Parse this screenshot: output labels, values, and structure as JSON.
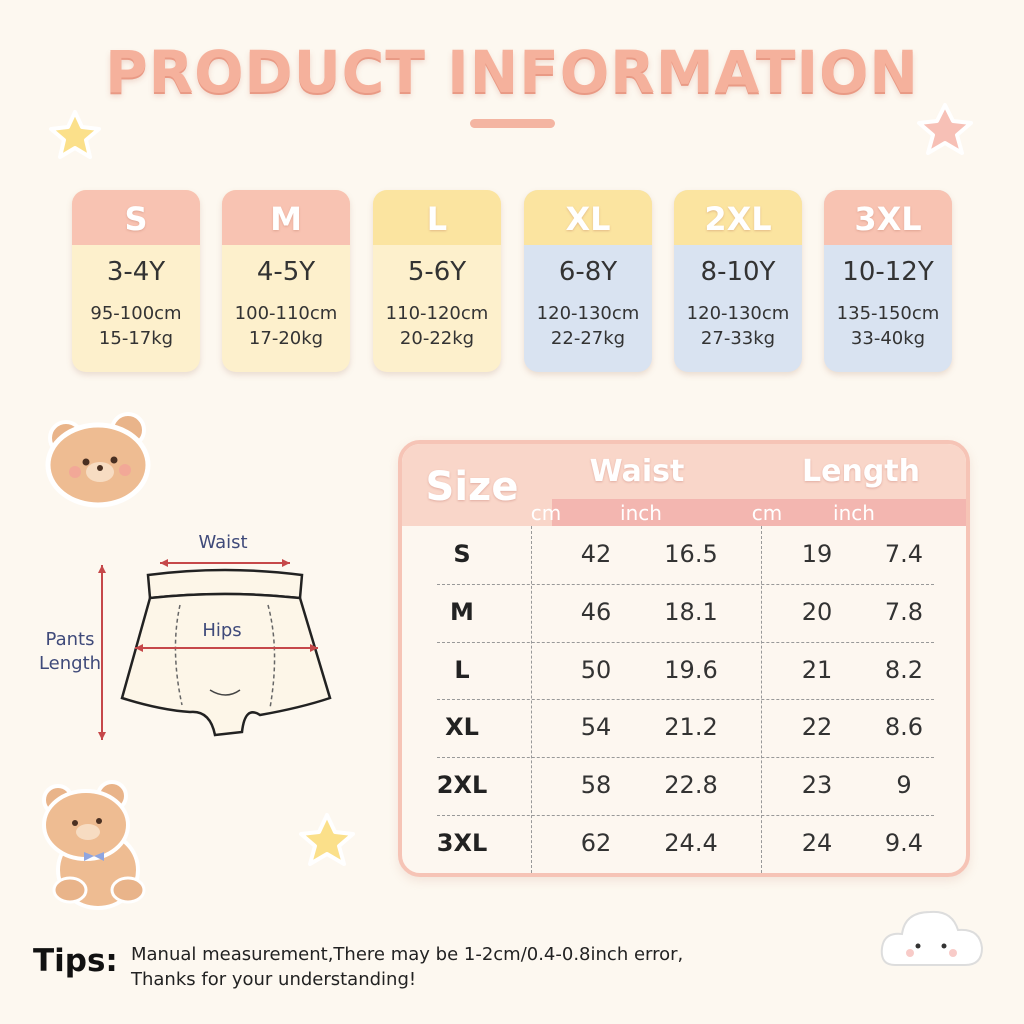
{
  "title": "PRODUCT INFORMATION",
  "size_cards": [
    {
      "size": "S",
      "age": "3-4Y",
      "height": "95-100cm",
      "weight": "15-17kg"
    },
    {
      "size": "M",
      "age": "4-5Y",
      "height": "100-110cm",
      "weight": "17-20kg"
    },
    {
      "size": "L",
      "age": "5-6Y",
      "height": "110-120cm",
      "weight": "20-22kg"
    },
    {
      "size": "XL",
      "age": "6-8Y",
      "height": "120-130cm",
      "weight": "22-27kg"
    },
    {
      "size": "2XL",
      "age": "8-10Y",
      "height": "120-130cm",
      "weight": "27-33kg"
    },
    {
      "size": "3XL",
      "age": "10-12Y",
      "height": "135-150cm",
      "weight": "33-40kg"
    }
  ],
  "diagram": {
    "waist": "Waist",
    "hips": "Hips",
    "length": "Pants Length"
  },
  "table": {
    "size_header": "Size",
    "groups": [
      {
        "name": "Waist",
        "units": [
          "cm",
          "inch"
        ]
      },
      {
        "name": "Length",
        "units": [
          "cm",
          "inch"
        ]
      }
    ],
    "rows": [
      [
        "S",
        42,
        16.5,
        19,
        7.4
      ],
      [
        "M",
        46,
        18.1,
        20,
        7.8
      ],
      [
        "L",
        50,
        19.6,
        21,
        8.2
      ],
      [
        "XL",
        54,
        21.2,
        22,
        8.6
      ],
      [
        "2XL",
        58,
        22.8,
        23,
        9
      ],
      [
        "3XL",
        62,
        24.4,
        24,
        9.4
      ]
    ]
  },
  "tips": {
    "label": "Tips:",
    "lines": [
      "Manual measurement,There may be 1-2cm/0.4-0.8inch error,",
      "Thanks for your understanding!"
    ]
  }
}
